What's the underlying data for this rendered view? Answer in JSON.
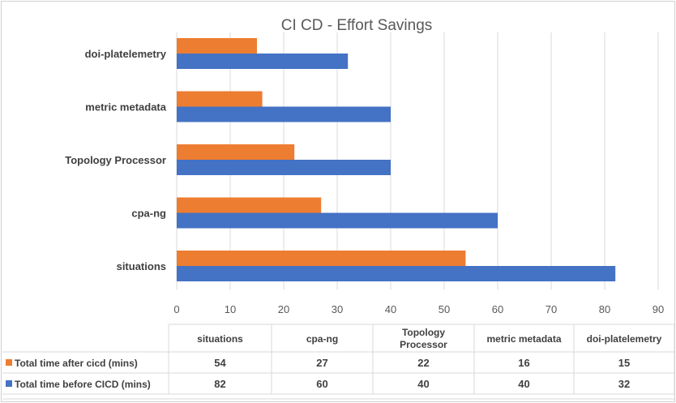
{
  "chart_data": {
    "type": "bar",
    "orientation": "horizontal",
    "title": "CI CD - Effort Savings",
    "categories": [
      "situations",
      "cpa-ng",
      "Topology Processor",
      "metric metadata",
      "doi-platelemetry"
    ],
    "table_headers": [
      "situations",
      "cpa-ng",
      "Topology\nProcessor",
      "metric metadata",
      "doi-platelemetry"
    ],
    "series": [
      {
        "name": "Total time after cicd (mins)",
        "color": "#ED7D31",
        "values": [
          54,
          27,
          22,
          16,
          15
        ]
      },
      {
        "name": "Total time before CICD (mins)",
        "color": "#4472C4",
        "values": [
          82,
          60,
          40,
          40,
          32
        ]
      }
    ],
    "xlim": [
      0,
      90
    ],
    "xticks": [
      0,
      10,
      20,
      30,
      40,
      50,
      60,
      70,
      80,
      90
    ],
    "grid": true,
    "legend": "data-table-below"
  }
}
